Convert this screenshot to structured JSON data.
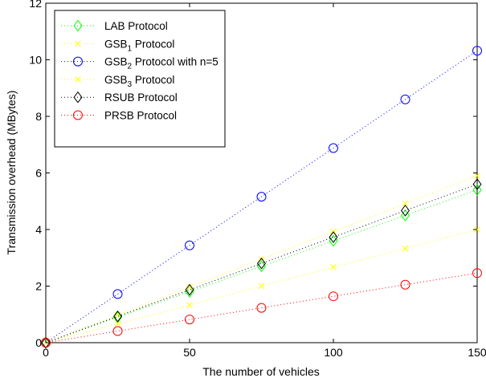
{
  "chart_data": {
    "type": "line",
    "title": "",
    "xlabel": "The number of vehicles",
    "ylabel": "Transmission overhead (MBytes)",
    "xlim": [
      0,
      150
    ],
    "ylim": [
      0,
      12
    ],
    "xticks": [
      0,
      50,
      100,
      150
    ],
    "yticks": [
      0,
      2,
      4,
      6,
      8,
      10,
      12
    ],
    "grid": false,
    "legend_position": "top-left",
    "x": [
      0,
      25,
      50,
      75,
      100,
      125,
      150
    ],
    "series": [
      {
        "name": "LAB Protocol",
        "label_main": "LAB Protocol",
        "label_sub": "",
        "label_rest": "",
        "color": "#00ff00",
        "marker": "diamond",
        "values": [
          0,
          0.9,
          1.8,
          2.7,
          3.6,
          4.5,
          5.4
        ]
      },
      {
        "name": "GSB1 Protocol",
        "label_main": "GSB",
        "label_sub": "1",
        "label_rest": " Protocol",
        "color": "#ffff00",
        "marker": "x",
        "values": [
          0,
          0.67,
          1.33,
          2.0,
          2.67,
          3.33,
          4.0
        ]
      },
      {
        "name": "GSB2 Protocol with n=5",
        "label_main": "GSB",
        "label_sub": "2",
        "label_rest": " Protocol with n=5",
        "color": "#0000ff",
        "marker": "circle",
        "values": [
          0,
          1.72,
          3.44,
          5.16,
          6.88,
          8.6,
          10.32
        ]
      },
      {
        "name": "GSB3 Protocol",
        "label_main": "GSB",
        "label_sub": "3",
        "label_rest": " Protocol",
        "color": "#ffff00",
        "marker": "x",
        "values": [
          0,
          0.98,
          1.97,
          2.95,
          3.93,
          4.92,
          5.9
        ]
      },
      {
        "name": "RSUB Protocol",
        "label_main": "RSUB Protocol",
        "label_sub": "",
        "label_rest": "",
        "color": "#000000",
        "marker": "diamond",
        "values": [
          0,
          0.93,
          1.87,
          2.8,
          3.73,
          4.67,
          5.6
        ]
      },
      {
        "name": "PRSB Protocol",
        "label_main": "PRSB Protocol",
        "label_sub": "",
        "label_rest": "",
        "color": "#ff0000",
        "marker": "circle",
        "values": [
          0,
          0.41,
          0.82,
          1.23,
          1.64,
          2.05,
          2.46
        ]
      }
    ]
  }
}
